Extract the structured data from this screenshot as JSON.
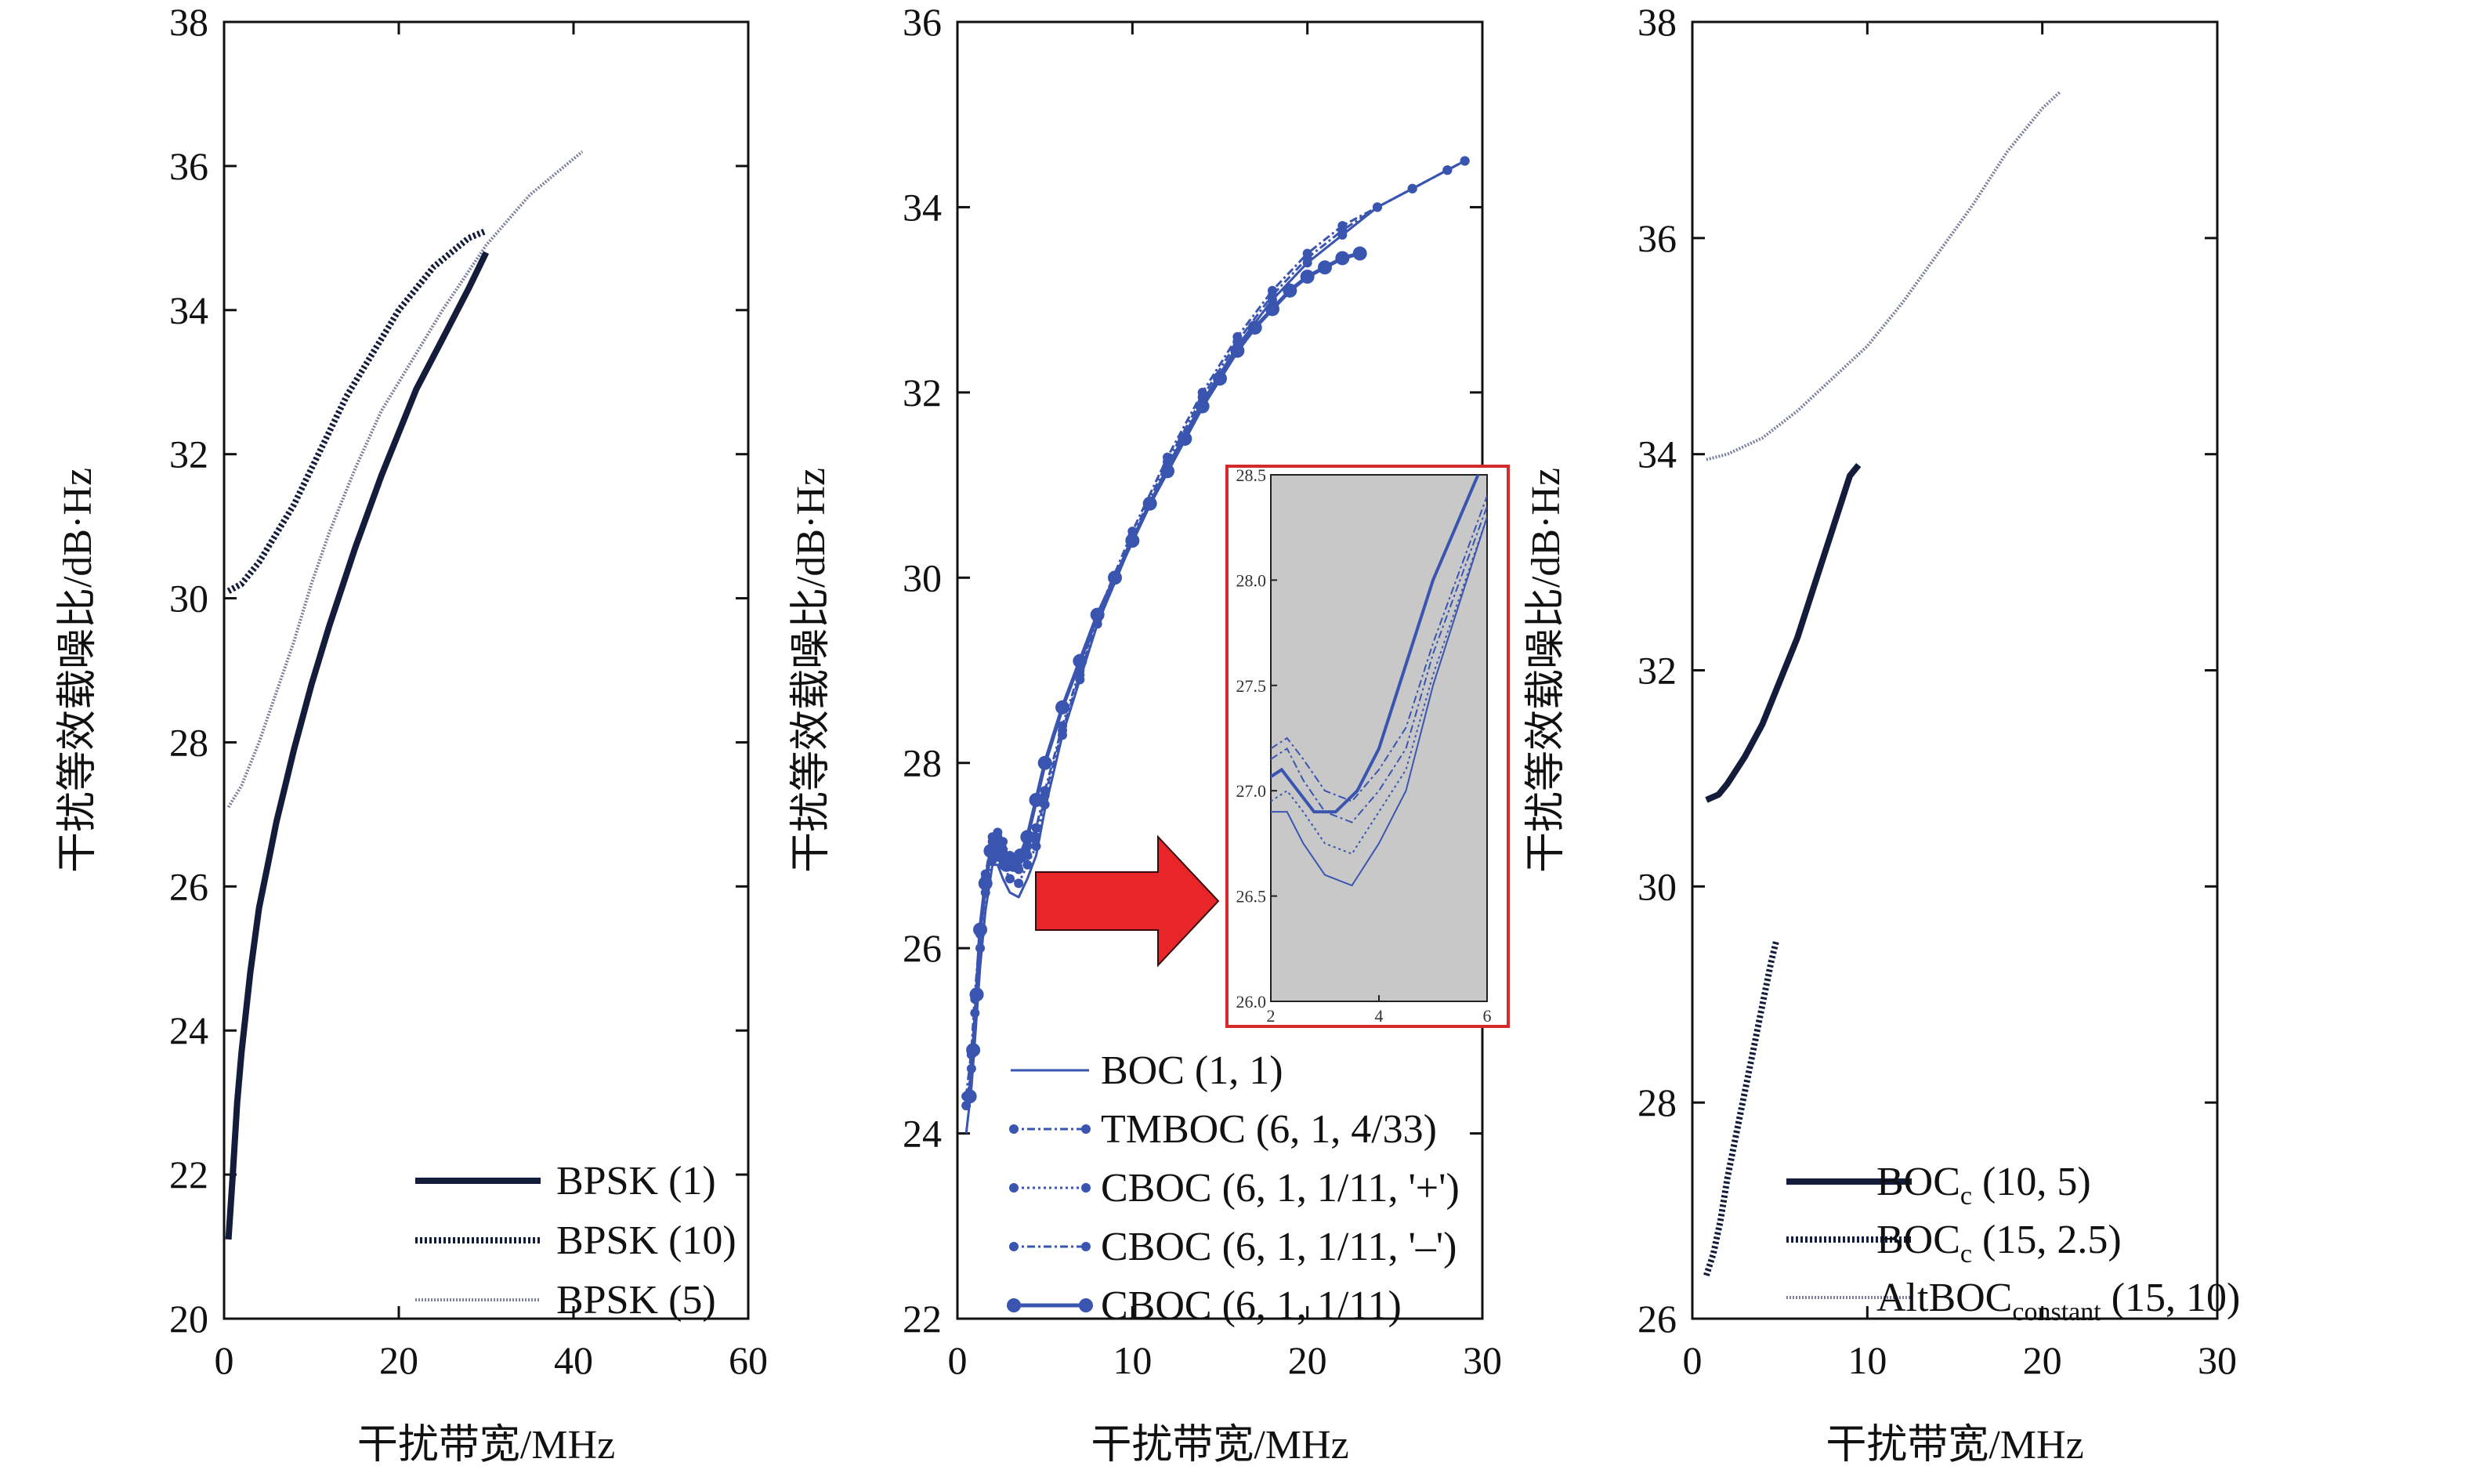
{
  "chart_data": [
    {
      "type": "line",
      "xlabel": "干扰带宽/MHz",
      "ylabel": "干扰等效载噪比/dB·Hz",
      "xlim": [
        0,
        60
      ],
      "ylim": [
        20,
        38
      ],
      "xticks": [
        "0",
        "20",
        "40",
        "60"
      ],
      "yticks": [
        "20",
        "22",
        "24",
        "26",
        "28",
        "30",
        "32",
        "34",
        "36",
        "38"
      ],
      "legend_position": "bottom-right",
      "series": [
        {
          "name": "BPSK (1)",
          "style": "solid-bold",
          "color": "#141c3c",
          "x": [
            0.5,
            1,
            1.5,
            2,
            3,
            4,
            5,
            6,
            7,
            8,
            10,
            12,
            15,
            18,
            20,
            22,
            25,
            28,
            30
          ],
          "y": [
            21.1,
            22.0,
            23.0,
            23.7,
            24.8,
            25.7,
            26.3,
            26.9,
            27.4,
            27.9,
            28.8,
            29.6,
            30.7,
            31.7,
            32.3,
            32.9,
            33.6,
            34.3,
            34.8
          ]
        },
        {
          "name": "BPSK (10)",
          "style": "dotted-bold",
          "color": "#141c3c",
          "x": [
            0.5,
            2,
            4,
            6,
            8,
            10,
            12,
            14,
            16,
            18,
            20,
            22,
            24,
            26,
            28,
            30
          ],
          "y": [
            30.1,
            30.2,
            30.5,
            30.9,
            31.3,
            31.8,
            32.3,
            32.8,
            33.2,
            33.6,
            34.0,
            34.3,
            34.6,
            34.8,
            35.0,
            35.1
          ]
        },
        {
          "name": "BPSK (5)",
          "style": "dotted-thin",
          "color": "#7a7f9a",
          "x": [
            0.5,
            2,
            4,
            6,
            8,
            10,
            12,
            15,
            18,
            20,
            25,
            30,
            35,
            38,
            41
          ],
          "y": [
            27.1,
            27.4,
            28.0,
            28.7,
            29.4,
            30.2,
            30.9,
            31.8,
            32.6,
            33.0,
            34.0,
            34.9,
            35.6,
            35.9,
            36.2
          ]
        }
      ]
    },
    {
      "type": "line",
      "xlabel": "干扰带宽/MHz",
      "ylabel": "干扰等效载噪比/dB·Hz",
      "xlim": [
        0,
        30
      ],
      "ylim": [
        22,
        36
      ],
      "xticks": [
        "0",
        "10",
        "20",
        "30"
      ],
      "yticks": [
        "22",
        "24",
        "26",
        "28",
        "30",
        "32",
        "34",
        "36"
      ],
      "legend_position": "bottom-center",
      "series": [
        {
          "name": "BOC (1, 1)",
          "style": "solid-thin",
          "color": "#3a55b0",
          "x": [
            0.5,
            0.8,
            1.0,
            1.3,
            1.6,
            2.0,
            2.3,
            2.6,
            3.0,
            3.5,
            4.0,
            4.5,
            5,
            6,
            7,
            8,
            10,
            12,
            14,
            16,
            18,
            20,
            22,
            24,
            26,
            28,
            29
          ],
          "y": [
            24.0,
            24.5,
            25.0,
            25.8,
            26.4,
            26.9,
            26.9,
            26.75,
            26.6,
            26.55,
            26.75,
            27.0,
            27.5,
            28.3,
            28.9,
            29.5,
            30.4,
            31.2,
            31.9,
            32.5,
            33.0,
            33.4,
            33.7,
            34.0,
            34.2,
            34.4,
            34.5
          ]
        },
        {
          "name": "TMBOC (6, 1, 4/33)",
          "style": "dashdot-marker",
          "color": "#3a55b0",
          "x": [
            0.5,
            0.8,
            1.0,
            1.3,
            1.6,
            2.0,
            2.3,
            2.6,
            3.0,
            3.5,
            4.0,
            4.5,
            5,
            6,
            7,
            8,
            10,
            12,
            14,
            16,
            18,
            20,
            22,
            24,
            26,
            28,
            29
          ],
          "y": [
            24.4,
            24.9,
            25.5,
            26.2,
            26.8,
            27.2,
            27.25,
            27.15,
            27.0,
            26.95,
            27.1,
            27.3,
            27.7,
            28.4,
            29.0,
            29.6,
            30.5,
            31.3,
            32.0,
            32.6,
            33.1,
            33.5,
            33.8,
            34.0,
            34.2,
            34.4,
            34.5
          ]
        },
        {
          "name": "CBOC (6, 1, 1/11, '+')",
          "style": "dotted-marker",
          "color": "#3a55b0",
          "x": [
            0.5,
            0.8,
            1.0,
            1.3,
            1.6,
            2.0,
            2.3,
            2.6,
            3.0,
            3.5,
            4.0,
            4.5,
            5,
            6,
            7,
            8,
            10,
            12,
            14,
            16,
            18,
            20,
            22,
            24,
            26,
            28,
            29
          ],
          "y": [
            24.3,
            24.7,
            25.3,
            26.0,
            26.6,
            26.95,
            27.0,
            26.9,
            26.75,
            26.7,
            26.9,
            27.1,
            27.55,
            28.3,
            28.9,
            29.5,
            30.4,
            31.2,
            31.9,
            32.5,
            33.0,
            33.4,
            33.7,
            34.0,
            34.2,
            34.4,
            34.5
          ]
        },
        {
          "name": "CBOC (6, 1, 1/11, '–')",
          "style": "dashdot-marker",
          "color": "#3a55b0",
          "x": [
            0.5,
            0.8,
            1.0,
            1.3,
            1.6,
            2.0,
            2.3,
            2.6,
            3.0,
            3.5,
            4.0,
            4.5,
            5,
            6,
            7,
            8,
            10,
            12,
            14,
            16,
            18,
            20,
            22,
            24,
            26,
            28,
            29
          ],
          "y": [
            24.4,
            24.85,
            25.45,
            26.15,
            26.75,
            27.15,
            27.2,
            27.05,
            26.9,
            26.85,
            27.0,
            27.2,
            27.65,
            28.35,
            28.95,
            29.55,
            30.45,
            31.25,
            31.95,
            32.55,
            33.05,
            33.45,
            33.75,
            34.0,
            34.2,
            34.4,
            34.5
          ]
        },
        {
          "name": "CBOC (6, 1, 1/11)",
          "style": "solid-bigmarker",
          "color": "#3a55b0",
          "x": [
            0.7,
            0.9,
            1.1,
            1.3,
            1.6,
            1.9,
            2.2,
            2.5,
            2.8,
            3.2,
            3.6,
            4.0,
            4.5,
            5,
            6,
            7,
            8,
            9,
            10,
            11,
            12,
            13,
            14,
            15,
            16,
            17,
            18,
            19,
            20,
            21,
            22,
            23
          ],
          "y": [
            24.4,
            24.9,
            25.5,
            26.2,
            26.7,
            27.05,
            27.1,
            27.0,
            26.9,
            26.9,
            27.0,
            27.2,
            27.6,
            28.0,
            28.6,
            29.1,
            29.6,
            30.0,
            30.4,
            30.8,
            31.15,
            31.5,
            31.85,
            32.15,
            32.45,
            32.7,
            32.9,
            33.1,
            33.25,
            33.35,
            33.45,
            33.5
          ]
        }
      ],
      "inset": {
        "xlim": [
          2,
          6
        ],
        "ylim": [
          26.0,
          28.5
        ],
        "xticks": [
          "2",
          "4",
          "6"
        ],
        "yticks": [
          "26.0",
          "26.5",
          "27.0",
          "27.5",
          "28.0",
          "28.5"
        ],
        "background": "#c8c8c8",
        "border_color": "#d42a2a",
        "arrow_color": "#e8262a"
      }
    },
    {
      "type": "line",
      "xlabel": "干扰带宽/MHz",
      "ylabel": "干扰等效载噪比/dB·Hz",
      "xlim": [
        0,
        30
      ],
      "ylim": [
        26,
        38
      ],
      "xticks": [
        "0",
        "10",
        "20",
        "30"
      ],
      "yticks": [
        "26",
        "28",
        "30",
        "32",
        "34",
        "36",
        "38"
      ],
      "legend_position": "bottom-right",
      "series": [
        {
          "name_base": "BOC",
          "name_sub": "c",
          "name_suffix": " (10, 5)",
          "style": "solid-bold",
          "color": "#141c3c",
          "x": [
            0.8,
            1.5,
            2,
            3,
            4,
            5,
            6,
            7,
            8,
            9,
            9.5
          ],
          "y": [
            30.8,
            30.85,
            30.95,
            31.2,
            31.5,
            31.9,
            32.3,
            32.8,
            33.3,
            33.8,
            33.9
          ]
        },
        {
          "name_base": "BOC",
          "name_sub": "c",
          "name_suffix": " (15, 2.5)",
          "style": "dotted-bold",
          "color": "#141c3c",
          "x": [
            0.8,
            1.2,
            1.6,
            2,
            2.5,
            3,
            3.5,
            4,
            4.5,
            4.8
          ],
          "y": [
            26.4,
            26.6,
            26.9,
            27.3,
            27.7,
            28.1,
            28.5,
            28.9,
            29.3,
            29.5
          ]
        },
        {
          "name_base": "AltBOC",
          "name_sub": "constant",
          "name_suffix": " (15, 10)",
          "style": "dotted-thin",
          "color": "#7a7f9a",
          "x": [
            0.8,
            2,
            4,
            6,
            8,
            10,
            12,
            14,
            16,
            18,
            20,
            21
          ],
          "y": [
            33.95,
            34.0,
            34.15,
            34.4,
            34.7,
            35.0,
            35.4,
            35.85,
            36.3,
            36.8,
            37.2,
            37.35
          ]
        }
      ]
    }
  ]
}
